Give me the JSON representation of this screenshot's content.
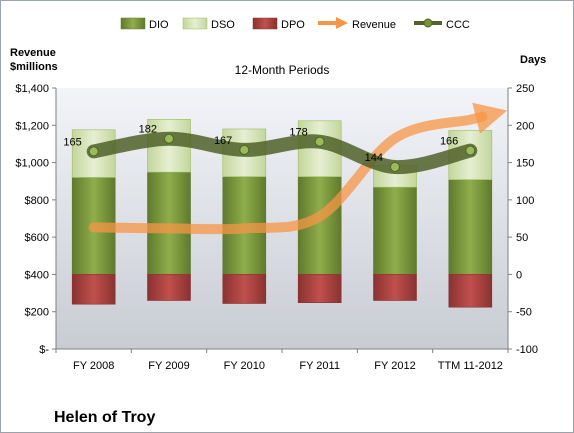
{
  "chart_data": {
    "type": "bar",
    "title": "12-Month Periods",
    "company": "Helen of Troy",
    "left_axis_label": [
      "Revenue",
      "$millions"
    ],
    "right_axis_label": "Days",
    "categories": [
      "FY 2008",
      "FY 2009",
      "FY 2010",
      "FY 2011",
      "FY 2012",
      "TTM 11-2012"
    ],
    "left_axis": {
      "min": 0,
      "max": 1400,
      "step": 200,
      "tick_labels": [
        "$-",
        "$200",
        "$400",
        "$600",
        "$800",
        "$1,000",
        "$1,200",
        "$1,400"
      ]
    },
    "right_axis": {
      "min": -100,
      "max": 250,
      "step": 50,
      "tick_labels": [
        "-100",
        "-50",
        "0",
        "50",
        "100",
        "150",
        "200",
        "250"
      ]
    },
    "series": [
      {
        "name": "DIO",
        "values": [
          130,
          137,
          131,
          131,
          117,
          127
        ],
        "color": "#77933c"
      },
      {
        "name": "DSO",
        "values": [
          64,
          71,
          64,
          75,
          29,
          66
        ],
        "color": "#d7e4bd"
      },
      {
        "name": "DPO",
        "values": [
          -40,
          -35,
          -39,
          -38,
          -35,
          -44
        ],
        "color": "#953735"
      },
      {
        "name": "Revenue",
        "values": [
          652,
          647,
          647,
          710,
          1130,
          1230
        ],
        "color": "#f79646"
      },
      {
        "name": "CCC",
        "values": [
          165,
          182,
          167,
          178,
          144,
          166
        ],
        "color": "#4f6228"
      }
    ],
    "ccc_labels": [
      "165",
      "182",
      "167",
      "178",
      "144",
      "166"
    ],
    "legend_position": "top",
    "grid": false
  }
}
